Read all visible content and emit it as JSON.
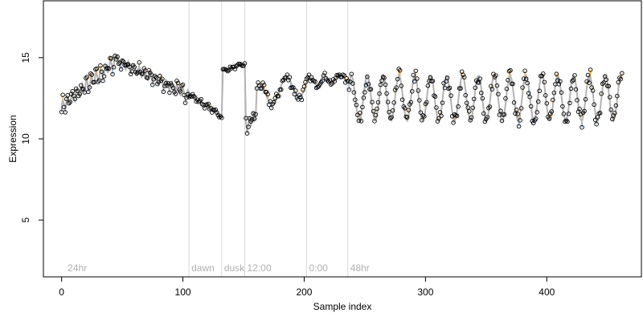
{
  "chart_data": {
    "type": "scatter",
    "xlabel": "Sample index",
    "ylabel": "Expression",
    "xlim": [
      -15,
      478
    ],
    "ylim": [
      1.5,
      18.5
    ],
    "x_ticks": [
      0,
      100,
      200,
      300,
      400
    ],
    "y_ticks": [
      5,
      10,
      15
    ],
    "grid": false,
    "legend": "none",
    "colors": {
      "up_segment": "#f5a623",
      "down_segment": "#6c9bd2",
      "trend_line": "#b3b3b3",
      "point_stroke": "#000000",
      "annotation_line": "#d9d9d9",
      "annotation_text": "#b0b0b0"
    },
    "annotations": [
      {
        "x": 3,
        "label": "24hr",
        "line": false
      },
      {
        "x": 105,
        "label": "dawn",
        "line": true
      },
      {
        "x": 132,
        "label": "dusk",
        "line": true
      },
      {
        "x": 151,
        "label": "12:00",
        "line": true
      },
      {
        "x": 202,
        "label": "0:00",
        "line": true
      },
      {
        "x": 236,
        "label": "48hr",
        "line": true
      }
    ],
    "segments": [
      {
        "x0": 0,
        "x1": 45,
        "y0": 12.0,
        "y1": 14.8,
        "amp": 0.35,
        "freq": 1.6,
        "noise": 0.35
      },
      {
        "x0": 46,
        "x1": 105,
        "y0": 14.8,
        "y1": 12.7,
        "amp": 0.3,
        "freq": 1.4,
        "noise": 0.3
      },
      {
        "x0": 106,
        "x1": 132,
        "y0": 12.7,
        "y1": 11.4,
        "amp": 0.1,
        "freq": 1.0,
        "noise": 0.12
      },
      {
        "x0": 133,
        "x1": 151,
        "y0": 14.2,
        "y1": 14.6,
        "amp": 0.05,
        "freq": 1.0,
        "noise": 0.08
      },
      {
        "x0": 152,
        "x1": 160,
        "y0": 10.7,
        "y1": 11.5,
        "amp": 0.4,
        "freq": 2.0,
        "noise": 0.4
      },
      {
        "x0": 161,
        "x1": 202,
        "y0": 12.6,
        "y1": 13.4,
        "amp": 0.7,
        "freq": 0.28,
        "noise": 0.35
      },
      {
        "x0": 203,
        "x1": 236,
        "y0": 13.5,
        "y1": 13.8,
        "amp": 0.25,
        "freq": 0.5,
        "noise": 0.2
      },
      {
        "x0": 237,
        "x1": 462,
        "y0": 12.5,
        "y1": 12.5,
        "amp": 1.4,
        "freq": 0.48,
        "noise": 0.45
      }
    ]
  }
}
